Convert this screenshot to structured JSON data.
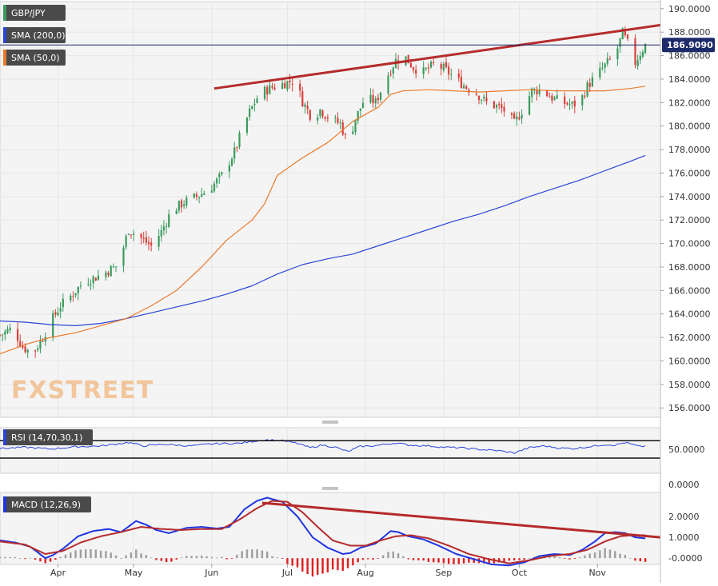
{
  "colors": {
    "bull": "#3a9b5c",
    "bear": "#d8403b",
    "sma200": "#2a44d6",
    "sma50": "#ea7a2a",
    "trendline": "#b52b2b",
    "rsi": "#2a44d6",
    "macd": "#1f35e0",
    "signal": "#b52b2b",
    "hist_pos": "#9e9e9e",
    "hist_neg": "#e01e1e",
    "grid": "#e6e6e6",
    "panel_bg": "#f4f4f4",
    "logo": "#f2a255"
  },
  "chart_data": [
    {
      "type": "candlestick",
      "panel": "price",
      "symbol": "GBP/JPY",
      "legend": [
        {
          "label": "GBP/JPY",
          "color": "#3a9b5c"
        },
        {
          "label": "SMA (200,0)",
          "color": "#2a44d6"
        },
        {
          "label": "SMA (50,0)",
          "color": "#ea7a2a"
        }
      ],
      "y_ticks": [
        "190.0000",
        "188.0000",
        "186.0000",
        "184.0000",
        "182.0000",
        "180.0000",
        "178.0000",
        "176.0000",
        "174.0000",
        "172.0000",
        "170.0000",
        "168.0000",
        "166.0000",
        "164.0000",
        "162.0000",
        "160.0000",
        "158.0000",
        "156.0000"
      ],
      "ylim": [
        155.2,
        190.6
      ],
      "last_price_label": "186.9090",
      "last_price": 186.909,
      "x_labels": [
        "Apr",
        "May",
        "Jun",
        "Jul",
        "Aug",
        "Sep",
        "Oct",
        "Nov"
      ],
      "x_label_days": [
        23,
        53,
        84,
        114,
        145,
        176,
        206,
        237
      ],
      "day_range": [
        0,
        262
      ],
      "anchors": [
        [
          0,
          162.2
        ],
        [
          5,
          162.8
        ],
        [
          9,
          161.2
        ],
        [
          13,
          160.6
        ],
        [
          17,
          162.0
        ],
        [
          20,
          163.3
        ],
        [
          24,
          164.7
        ],
        [
          28,
          165.5
        ],
        [
          33,
          166.7
        ],
        [
          40,
          167.3
        ],
        [
          47,
          168.2
        ],
        [
          51,
          171.2
        ],
        [
          55,
          170.6
        ],
        [
          60,
          169.8
        ],
        [
          64,
          171.0
        ],
        [
          68,
          172.8
        ],
        [
          73,
          173.5
        ],
        [
          78,
          174.0
        ],
        [
          83,
          174.6
        ],
        [
          88,
          175.8
        ],
        [
          93,
          177.8
        ],
        [
          96,
          179.6
        ],
        [
          99,
          181.2
        ],
        [
          103,
          182.8
        ],
        [
          108,
          183.3
        ],
        [
          112,
          183.6
        ],
        [
          117,
          183.9
        ],
        [
          120,
          182.1
        ],
        [
          124,
          180.6
        ],
        [
          127,
          181.4
        ],
        [
          131,
          180.6
        ],
        [
          135,
          180.2
        ],
        [
          138,
          178.5
        ],
        [
          141,
          180.6
        ],
        [
          145,
          182.5
        ],
        [
          149,
          182.0
        ],
        [
          153,
          184.0
        ],
        [
          157,
          185.6
        ],
        [
          161,
          185.8
        ],
        [
          164,
          185.0
        ],
        [
          168,
          184.6
        ],
        [
          172,
          185.2
        ],
        [
          176,
          184.9
        ],
        [
          181,
          184.0
        ],
        [
          185,
          183.3
        ],
        [
          189,
          182.8
        ],
        [
          193,
          182.0
        ],
        [
          198,
          181.6
        ],
        [
          201,
          181.2
        ],
        [
          204,
          180.2
        ],
        [
          207,
          181.3
        ],
        [
          211,
          183.0
        ],
        [
          215,
          183.1
        ],
        [
          219,
          182.4
        ],
        [
          223,
          182.0
        ],
        [
          227,
          181.8
        ],
        [
          230,
          182.0
        ],
        [
          233,
          183.4
        ],
        [
          237,
          184.4
        ],
        [
          241,
          185.4
        ],
        [
          244,
          186.0
        ],
        [
          247,
          187.9
        ],
        [
          250,
          186.6
        ],
        [
          252,
          185.4
        ],
        [
          254,
          186.2
        ],
        [
          256,
          186.9
        ]
      ],
      "sma200_points": [
        [
          0,
          163.4
        ],
        [
          10,
          163.3
        ],
        [
          20,
          163.1
        ],
        [
          30,
          163.0
        ],
        [
          40,
          163.2
        ],
        [
          50,
          163.6
        ],
        [
          60,
          164.1
        ],
        [
          70,
          164.6
        ],
        [
          80,
          165.1
        ],
        [
          90,
          165.7
        ],
        [
          100,
          166.4
        ],
        [
          110,
          167.4
        ],
        [
          120,
          168.2
        ],
        [
          130,
          168.7
        ],
        [
          140,
          169.1
        ],
        [
          150,
          169.8
        ],
        [
          160,
          170.5
        ],
        [
          170,
          171.2
        ],
        [
          180,
          171.9
        ],
        [
          190,
          172.5
        ],
        [
          200,
          173.2
        ],
        [
          210,
          174.0
        ],
        [
          220,
          174.7
        ],
        [
          230,
          175.4
        ],
        [
          240,
          176.2
        ],
        [
          250,
          177.0
        ],
        [
          256,
          177.5
        ]
      ],
      "sma50_points": [
        [
          0,
          160.6
        ],
        [
          10,
          161.4
        ],
        [
          20,
          162.0
        ],
        [
          30,
          162.4
        ],
        [
          40,
          163.0
        ],
        [
          50,
          163.6
        ],
        [
          60,
          164.7
        ],
        [
          70,
          166.0
        ],
        [
          80,
          168.0
        ],
        [
          90,
          170.3
        ],
        [
          100,
          172.0
        ],
        [
          105,
          173.4
        ],
        [
          110,
          175.8
        ],
        [
          120,
          177.3
        ],
        [
          130,
          178.6
        ],
        [
          140,
          180.4
        ],
        [
          150,
          181.6
        ],
        [
          155,
          182.7
        ],
        [
          160,
          183.0
        ],
        [
          170,
          183.1
        ],
        [
          180,
          183.0
        ],
        [
          190,
          182.9
        ],
        [
          200,
          183.0
        ],
        [
          210,
          183.1
        ],
        [
          220,
          183.0
        ],
        [
          230,
          183.0
        ],
        [
          240,
          183.0
        ],
        [
          250,
          183.2
        ],
        [
          256,
          183.4
        ]
      ],
      "trendline": [
        [
          85,
          183.2
        ],
        [
          262,
          188.6
        ]
      ]
    },
    {
      "type": "line",
      "panel": "rsi",
      "legend_label": "RSI (14,70,30,1)",
      "y_ticks": [
        "50.0000",
        "0.0000"
      ],
      "levels": [
        70,
        30
      ],
      "ylim": [
        -5,
        100
      ],
      "anchors": [
        [
          0,
          52
        ],
        [
          10,
          55
        ],
        [
          20,
          51
        ],
        [
          30,
          56
        ],
        [
          40,
          58
        ],
        [
          51,
          66
        ],
        [
          57,
          58
        ],
        [
          65,
          62
        ],
        [
          75,
          58
        ],
        [
          85,
          63
        ],
        [
          95,
          64
        ],
        [
          102,
          70
        ],
        [
          106,
          72
        ],
        [
          112,
          70
        ],
        [
          118,
          64
        ],
        [
          123,
          54
        ],
        [
          128,
          60
        ],
        [
          133,
          55
        ],
        [
          138,
          45
        ],
        [
          143,
          57
        ],
        [
          148,
          58
        ],
        [
          153,
          62
        ],
        [
          157,
          65
        ],
        [
          162,
          60
        ],
        [
          170,
          58
        ],
        [
          176,
          55
        ],
        [
          182,
          54
        ],
        [
          190,
          50
        ],
        [
          198,
          47
        ],
        [
          204,
          42
        ],
        [
          210,
          54
        ],
        [
          216,
          58
        ],
        [
          222,
          53
        ],
        [
          228,
          52
        ],
        [
          232,
          55
        ],
        [
          236,
          58
        ],
        [
          240,
          61
        ],
        [
          244,
          60
        ],
        [
          248,
          66
        ],
        [
          251,
          61
        ],
        [
          254,
          56
        ],
        [
          256,
          58
        ]
      ]
    },
    {
      "type": "line",
      "panel": "macd",
      "legend_label": "MACD (12,26,9)",
      "y_ticks": [
        "2.0000",
        "1.0000",
        "-0.0000"
      ],
      "ylim": [
        -0.3,
        3.15
      ],
      "macd_anchors": [
        [
          0,
          0.85
        ],
        [
          6,
          0.75
        ],
        [
          12,
          0.55
        ],
        [
          18,
          0.0
        ],
        [
          21,
          0.15
        ],
        [
          25,
          0.45
        ],
        [
          31,
          1.05
        ],
        [
          37,
          1.3
        ],
        [
          43,
          1.4
        ],
        [
          48,
          1.25
        ],
        [
          54,
          1.78
        ],
        [
          58,
          1.6
        ],
        [
          62,
          1.35
        ],
        [
          67,
          1.2
        ],
        [
          74,
          1.45
        ],
        [
          80,
          1.5
        ],
        [
          86,
          1.42
        ],
        [
          91,
          1.5
        ],
        [
          97,
          2.35
        ],
        [
          102,
          2.75
        ],
        [
          106,
          2.9
        ],
        [
          112,
          2.7
        ],
        [
          118,
          2.0
        ],
        [
          124,
          1.0
        ],
        [
          130,
          0.5
        ],
        [
          136,
          0.2
        ],
        [
          139,
          0.25
        ],
        [
          143,
          0.5
        ],
        [
          149,
          0.7
        ],
        [
          155,
          1.3
        ],
        [
          158,
          1.25
        ],
        [
          162,
          1.05
        ],
        [
          168,
          0.9
        ],
        [
          174,
          0.6
        ],
        [
          181,
          0.2
        ],
        [
          188,
          -0.05
        ],
        [
          195,
          -0.3
        ],
        [
          202,
          -0.35
        ],
        [
          208,
          -0.2
        ],
        [
          214,
          0.1
        ],
        [
          220,
          0.2
        ],
        [
          226,
          0.15
        ],
        [
          231,
          0.4
        ],
        [
          236,
          0.8
        ],
        [
          240,
          1.2
        ],
        [
          244,
          1.25
        ],
        [
          248,
          1.2
        ],
        [
          252,
          1.0
        ],
        [
          256,
          0.95
        ]
      ],
      "signal_anchors": [
        [
          0,
          0.8
        ],
        [
          10,
          0.65
        ],
        [
          18,
          0.2
        ],
        [
          25,
          0.35
        ],
        [
          32,
          0.75
        ],
        [
          40,
          1.05
        ],
        [
          48,
          1.25
        ],
        [
          56,
          1.5
        ],
        [
          64,
          1.4
        ],
        [
          72,
          1.35
        ],
        [
          80,
          1.4
        ],
        [
          88,
          1.4
        ],
        [
          95,
          1.85
        ],
        [
          102,
          2.4
        ],
        [
          108,
          2.75
        ],
        [
          114,
          2.7
        ],
        [
          120,
          2.2
        ],
        [
          126,
          1.5
        ],
        [
          132,
          0.85
        ],
        [
          139,
          0.6
        ],
        [
          145,
          0.6
        ],
        [
          151,
          0.85
        ],
        [
          157,
          1.05
        ],
        [
          163,
          1.1
        ],
        [
          170,
          0.95
        ],
        [
          178,
          0.6
        ],
        [
          186,
          0.2
        ],
        [
          194,
          -0.05
        ],
        [
          202,
          -0.25
        ],
        [
          210,
          -0.1
        ],
        [
          218,
          0.1
        ],
        [
          226,
          0.2
        ],
        [
          233,
          0.4
        ],
        [
          240,
          0.8
        ],
        [
          246,
          1.05
        ],
        [
          251,
          1.1
        ],
        [
          256,
          1.1
        ]
      ],
      "trendline": [
        [
          104,
          2.65
        ],
        [
          262,
          1.0
        ]
      ]
    }
  ]
}
